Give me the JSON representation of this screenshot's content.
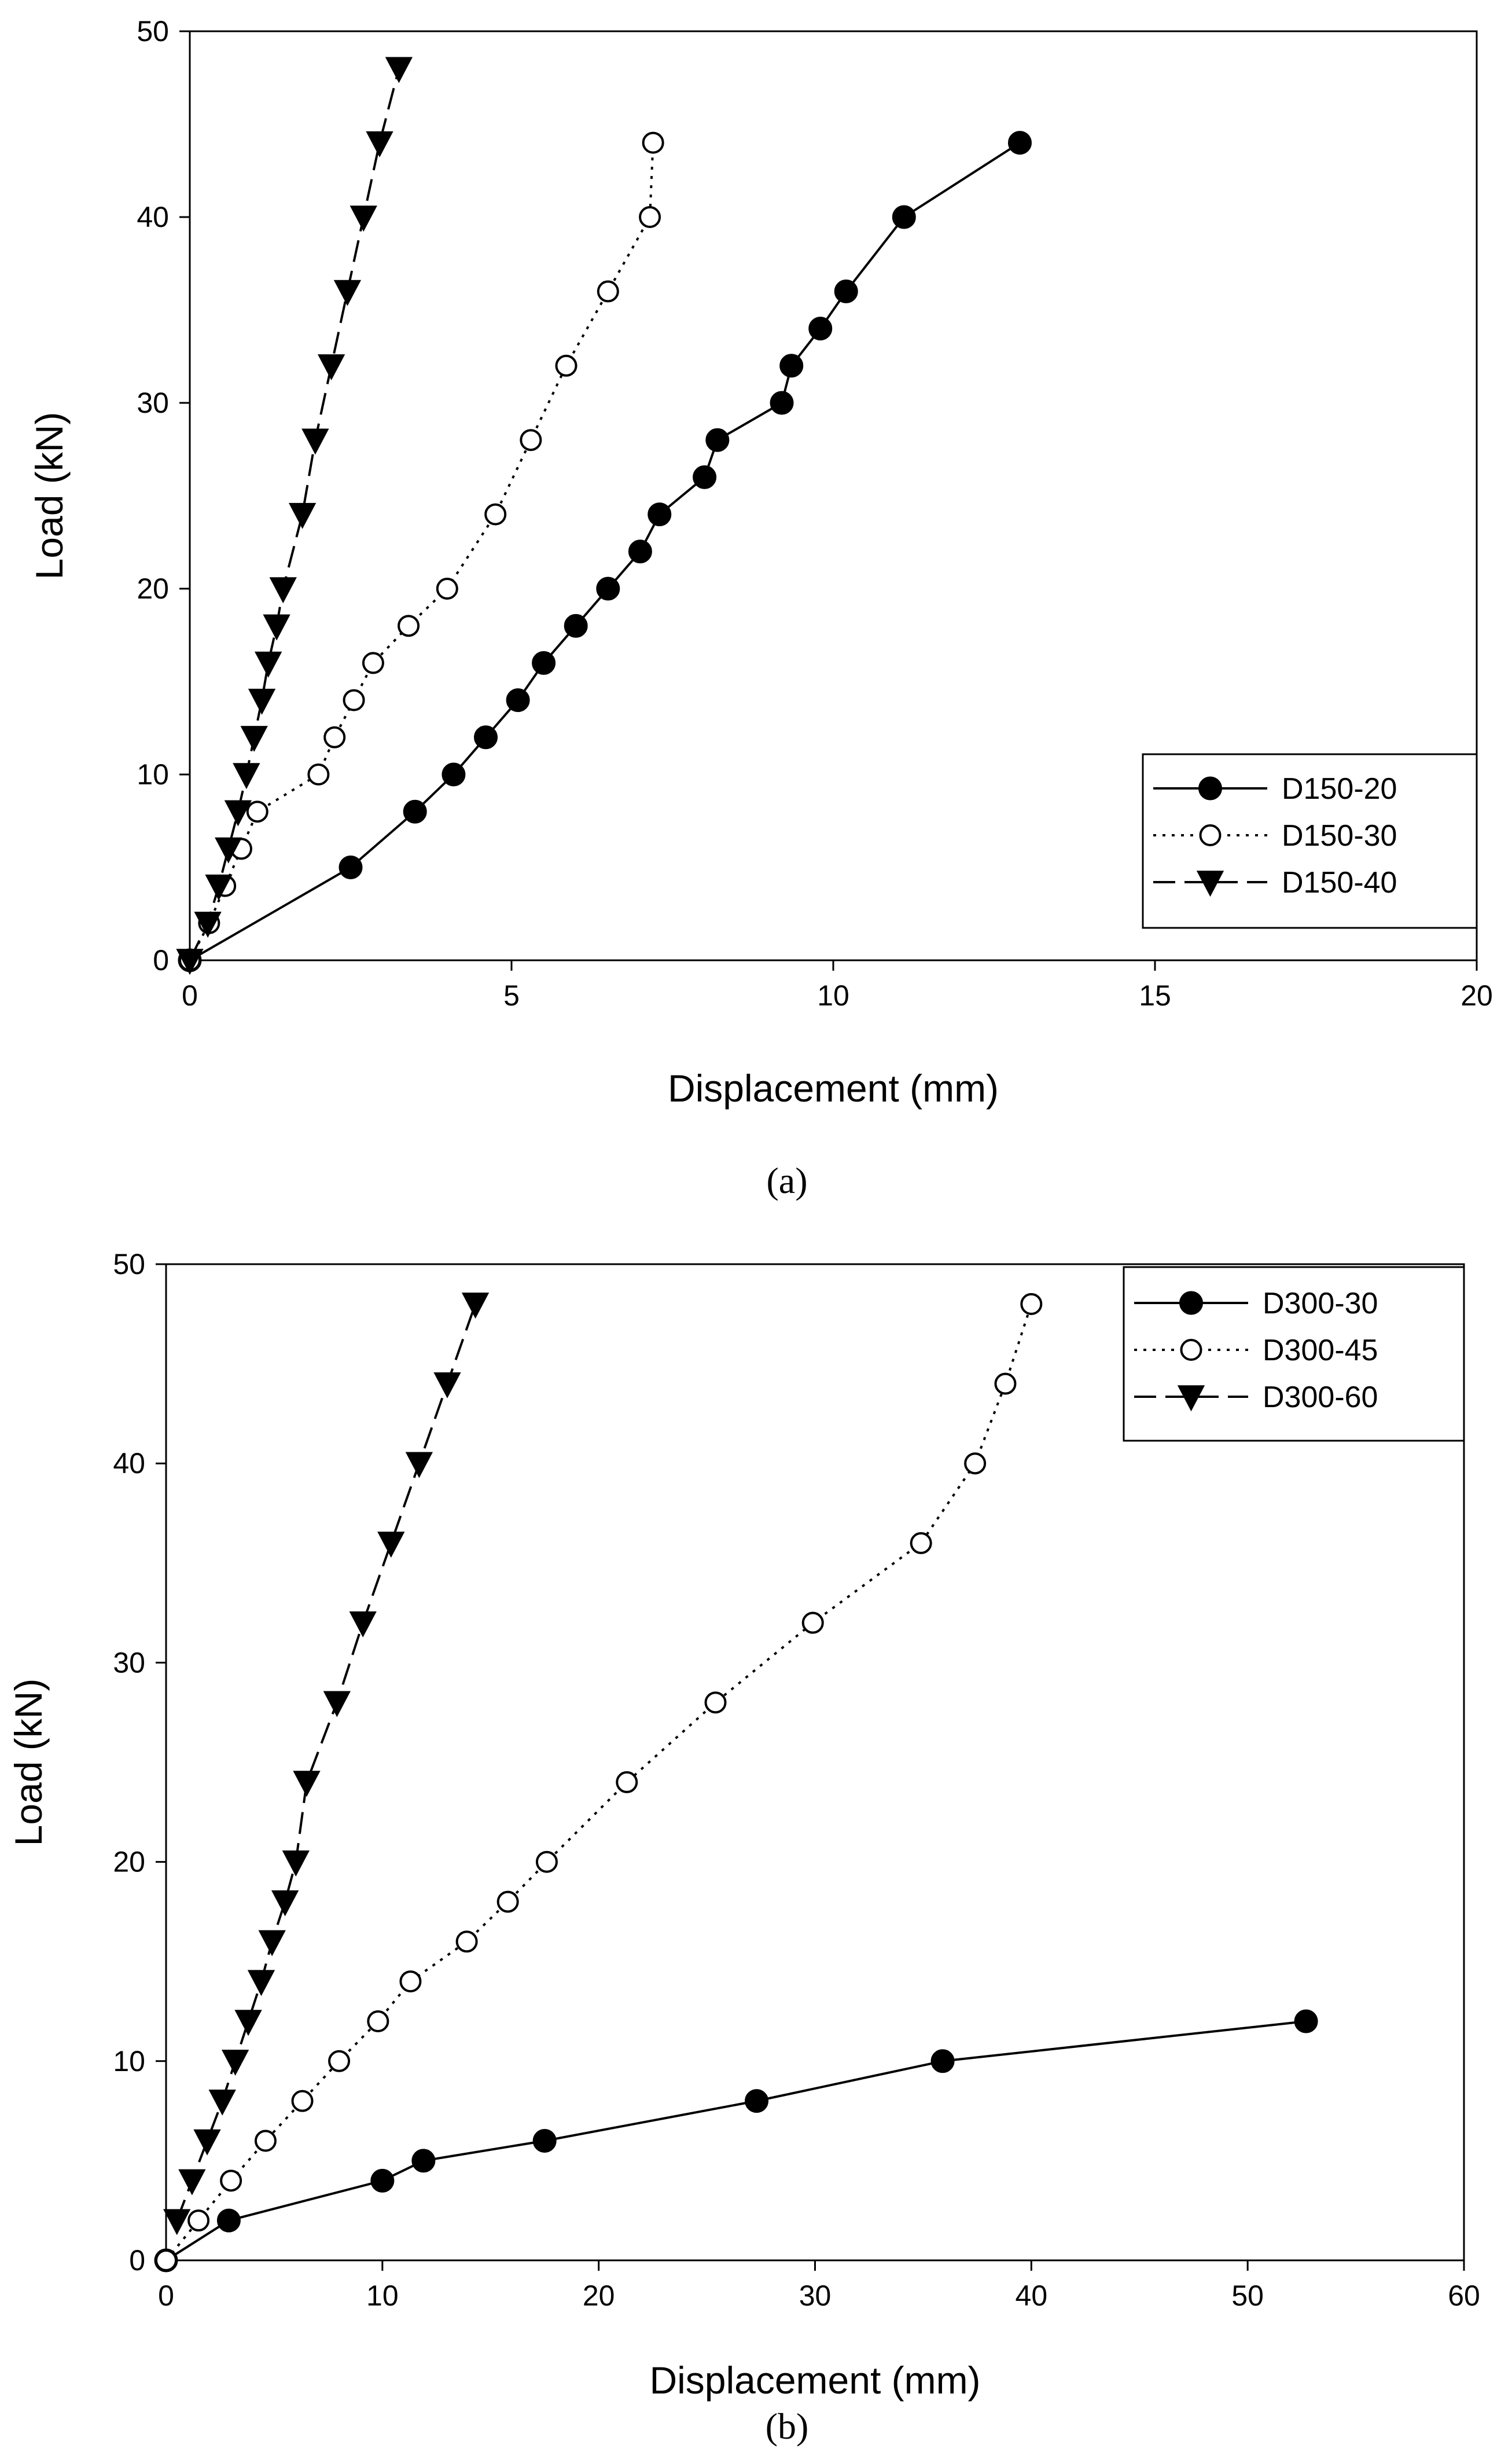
{
  "chart_data": [
    {
      "type": "line",
      "panel_label": "(a)",
      "xlabel": "Displacement (mm)",
      "ylabel": "Load (kN)",
      "xlim": [
        0,
        20
      ],
      "ylim": [
        0,
        50
      ],
      "xticks": [
        0,
        5,
        10,
        15,
        20
      ],
      "yticks": [
        0,
        10,
        20,
        30,
        40,
        50
      ],
      "legend_position": "bottom-right",
      "series": [
        {
          "name": "D150-20",
          "marker": "filled-circle",
          "line": "solid",
          "x": [
            0,
            2.5,
            3.5,
            4.1,
            4.6,
            5.1,
            5.5,
            6.0,
            6.5,
            7.0,
            7.3,
            8.0,
            8.2,
            9.2,
            9.35,
            9.8,
            10.2,
            11.1,
            12.9
          ],
          "y": [
            0,
            5,
            8,
            10,
            12,
            14,
            16,
            18,
            20,
            22,
            24,
            26,
            28,
            30,
            32,
            34,
            36,
            40,
            44
          ]
        },
        {
          "name": "D150-30",
          "marker": "open-circle",
          "line": "dotted",
          "x": [
            0,
            0.3,
            0.55,
            0.8,
            1.05,
            2.0,
            2.25,
            2.55,
            2.85,
            3.4,
            4.0,
            4.75,
            5.3,
            5.85,
            6.5,
            7.15,
            7.2
          ],
          "y": [
            0,
            2,
            4,
            6,
            8,
            10,
            12,
            14,
            16,
            18,
            20,
            24,
            28,
            32,
            36,
            40,
            44
          ]
        },
        {
          "name": "D150-40",
          "marker": "filled-triangle-down",
          "line": "dashed",
          "x": [
            0,
            0.28,
            0.45,
            0.6,
            0.75,
            0.88,
            1.0,
            1.12,
            1.22,
            1.35,
            1.45,
            1.75,
            1.95,
            2.2,
            2.45,
            2.7,
            2.95,
            3.25
          ],
          "y": [
            0,
            2,
            4,
            6,
            8,
            10,
            12,
            14,
            16,
            18,
            20,
            24,
            28,
            32,
            36,
            40,
            44,
            48
          ]
        }
      ]
    },
    {
      "type": "line",
      "panel_label": "(b)",
      "xlabel": "Displacement (mm)",
      "ylabel": "Load (kN)",
      "xlim": [
        0,
        60
      ],
      "ylim": [
        0,
        50
      ],
      "xticks": [
        0,
        10,
        20,
        30,
        40,
        50,
        60
      ],
      "yticks": [
        0,
        10,
        20,
        30,
        40,
        50
      ],
      "legend_position": "top-right",
      "series": [
        {
          "name": "D300-30",
          "marker": "filled-circle",
          "line": "solid",
          "x": [
            0,
            2.9,
            10.0,
            11.9,
            17.5,
            27.3,
            35.9,
            52.7
          ],
          "y": [
            0,
            2,
            4,
            5,
            6,
            8,
            10,
            12
          ]
        },
        {
          "name": "D300-45",
          "marker": "open-circle",
          "line": "dotted",
          "x": [
            0,
            1.5,
            3.0,
            4.6,
            6.3,
            8.0,
            9.8,
            11.3,
            13.9,
            15.8,
            17.6,
            21.3,
            25.4,
            29.9,
            34.9,
            37.4,
            38.8,
            40.0
          ],
          "y": [
            0,
            2,
            4,
            6,
            8,
            10,
            12,
            14,
            16,
            18,
            20,
            24,
            28,
            32,
            36,
            40,
            44,
            48
          ]
        },
        {
          "name": "D300-60",
          "marker": "filled-triangle-down",
          "line": "dashed",
          "x": [
            0.5,
            1.2,
            1.9,
            2.6,
            3.2,
            3.8,
            4.4,
            4.9,
            5.5,
            6.0,
            6.5,
            7.9,
            9.1,
            10.4,
            11.7,
            13.0,
            14.3
          ],
          "y": [
            2,
            4,
            6,
            8,
            10,
            12,
            14,
            16,
            18,
            20,
            24,
            28,
            32,
            36,
            40,
            44,
            48
          ]
        }
      ]
    }
  ]
}
